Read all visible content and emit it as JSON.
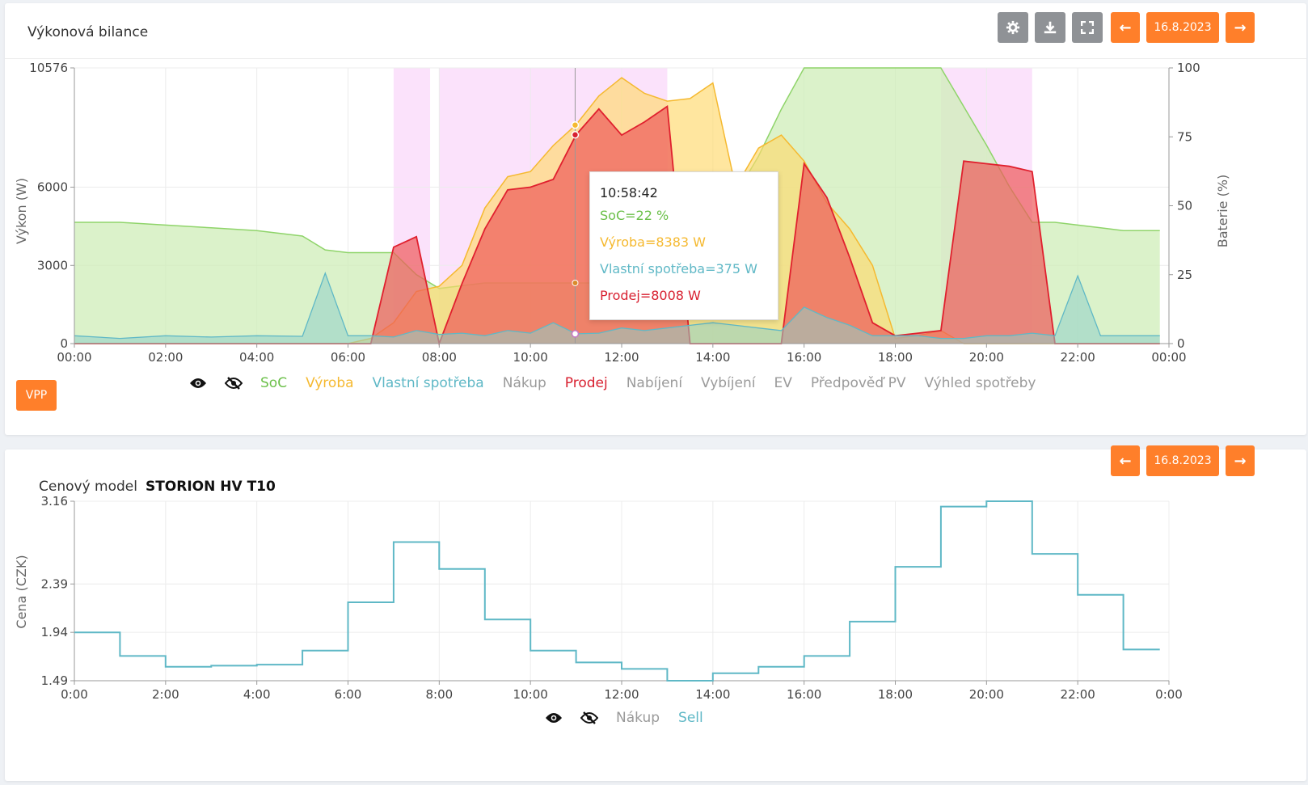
{
  "power_panel": {
    "title": "Výkonová bilance",
    "date": "16.8.2023",
    "prev_label": "←",
    "next_label": "→",
    "settings_icon": "gear-icon",
    "download_icon": "download-icon",
    "fullscreen_icon": "fullscreen-icon",
    "vpp_label": "VPP",
    "legend": [
      "SoC",
      "Výroba",
      "Vlastní spotřeba",
      "Nákup",
      "Prodej",
      "Nabíjení",
      "Vybíjení",
      "EV",
      "Předpověď PV",
      "Výhled spotřeby"
    ],
    "legend_colors": [
      "#6cc04a",
      "#f5b930",
      "#5fb8c6",
      "#9a9a9a",
      "#d82030",
      "#9a9a9a",
      "#9a9a9a",
      "#9a9a9a",
      "#9a9a9a",
      "#9a9a9a"
    ],
    "tooltip": {
      "time": "10:58:42",
      "soc": "SoC=22 %",
      "vyroba": "Výroba=8383 W",
      "spotreba": "Vlastní spotřeba=375 W",
      "prodej": "Prodej=8008 W"
    }
  },
  "price_panel": {
    "label": "Cenový model",
    "model": "STORION HV T10",
    "date": "16.8.2023",
    "prev_label": "←",
    "next_label": "→",
    "legend": [
      "Nákup",
      "Sell"
    ],
    "legend_colors": [
      "#9a9a9a",
      "#5fb8c6"
    ]
  },
  "chart_data": [
    {
      "type": "area",
      "title": "Výkonová bilance",
      "xlabel": "",
      "ylabel": "Výkon (W)",
      "y2label": "Baterie (%)",
      "x_ticks": [
        "00:00",
        "02:00",
        "04:00",
        "06:00",
        "08:00",
        "10:00",
        "12:00",
        "14:00",
        "16:00",
        "18:00",
        "20:00",
        "22:00",
        "00:00"
      ],
      "y_ticks": [
        "0",
        "3000",
        "6000",
        "10576"
      ],
      "y2_ticks": [
        "0",
        "25",
        "50",
        "75",
        "100"
      ],
      "ylim": [
        0,
        10576
      ],
      "y2lim": [
        0,
        100
      ],
      "x_hours": [
        0,
        1,
        2,
        3,
        4,
        5,
        5.5,
        6,
        6.5,
        7,
        7.5,
        8,
        8.5,
        9,
        9.5,
        10,
        10.5,
        11,
        11.5,
        12,
        12.5,
        13,
        13.5,
        14,
        14.5,
        15,
        15.5,
        16,
        16.5,
        17,
        17.5,
        18,
        18.5,
        19,
        19.5,
        20,
        20.5,
        21,
        21.5,
        22,
        22.5,
        23,
        23.8
      ],
      "series": [
        {
          "name": "SoC",
          "axis": "y2",
          "values": [
            44,
            44,
            43,
            42,
            41,
            39,
            34,
            33,
            33,
            33,
            25,
            20,
            21,
            22,
            22,
            22,
            22,
            22,
            22,
            22,
            23,
            26,
            28,
            38,
            54,
            68,
            85,
            100,
            100,
            100,
            100,
            100,
            100,
            100,
            86,
            72,
            57,
            44,
            44,
            43,
            42,
            41,
            41
          ]
        },
        {
          "name": "Výroba",
          "values": [
            0,
            0,
            0,
            0,
            0,
            0,
            0,
            0,
            200,
            800,
            2000,
            2200,
            3000,
            5200,
            6400,
            6600,
            7600,
            8400,
            9500,
            10200,
            9600,
            9300,
            9400,
            10000,
            6000,
            7500,
            8000,
            7000,
            5400,
            4400,
            3000,
            200,
            300,
            500,
            0,
            0,
            0,
            0,
            0,
            0,
            0,
            0,
            0
          ]
        },
        {
          "name": "Vlastní spotřeba",
          "values": [
            300,
            200,
            300,
            250,
            300,
            280,
            2700,
            300,
            300,
            250,
            500,
            350,
            400,
            300,
            500,
            400,
            800,
            375,
            400,
            600,
            500,
            600,
            700,
            800,
            700,
            600,
            500,
            1400,
            1000,
            700,
            300,
            300,
            300,
            200,
            200,
            300,
            300,
            400,
            300,
            2600,
            300,
            300,
            300
          ]
        },
        {
          "name": "Prodej",
          "values": [
            0,
            0,
            0,
            0,
            0,
            0,
            0,
            0,
            0,
            3700,
            4100,
            0,
            2300,
            4400,
            5900,
            6000,
            6300,
            8008,
            9000,
            8000,
            8500,
            9100,
            0,
            0,
            0,
            0,
            0,
            6900,
            5600,
            3300,
            800,
            300,
            400,
            500,
            7000,
            6900,
            6800,
            6600,
            0,
            0,
            0,
            0,
            0
          ]
        }
      ]
    },
    {
      "type": "line",
      "title": "",
      "xlabel": "",
      "ylabel": "Cena (CZK)",
      "x_ticks": [
        "0:00",
        "2:00",
        "4:00",
        "6:00",
        "8:00",
        "10:00",
        "12:00",
        "14:00",
        "16:00",
        "18:00",
        "20:00",
        "22:00",
        "0:00"
      ],
      "y_ticks": [
        "1.49",
        "1.94",
        "2.39",
        "3.16"
      ],
      "ylim": [
        1.49,
        3.16
      ],
      "step": true,
      "series": [
        {
          "name": "Sell",
          "hours": [
            0,
            1,
            2,
            3,
            4,
            5,
            6,
            7,
            8,
            9,
            10,
            11,
            12,
            13,
            14,
            15,
            16,
            17,
            18,
            19,
            20,
            21,
            22,
            23
          ],
          "values": [
            1.94,
            1.72,
            1.62,
            1.63,
            1.64,
            1.77,
            2.22,
            2.78,
            2.53,
            2.06,
            1.77,
            1.66,
            1.6,
            1.49,
            1.56,
            1.62,
            1.72,
            2.04,
            2.55,
            3.11,
            3.16,
            2.67,
            2.29,
            1.78
          ]
        }
      ]
    }
  ]
}
